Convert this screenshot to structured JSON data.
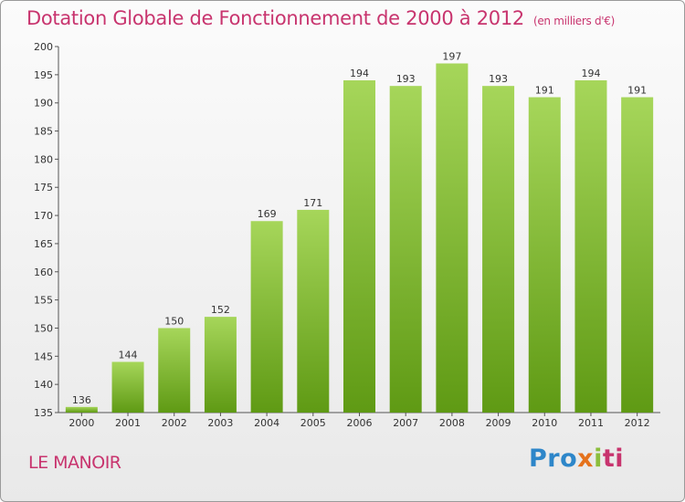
{
  "header": {
    "title": "Dotation Globale de Fonctionnement de 2000 à 2012",
    "units": "(en milliers d'€)"
  },
  "footer": {
    "place": "LE MANOIR",
    "logo_parts": [
      "Pro",
      "x",
      "i",
      "ti"
    ]
  },
  "colors": {
    "title": "#c8346e",
    "bar_top": "#a6d65a",
    "bar_bottom": "#5f9a14"
  },
  "chart_data": {
    "type": "bar",
    "title": "Dotation Globale de Fonctionnement de 2000 à 2012",
    "subtitle": "(en milliers d'€)",
    "xlabel": "",
    "ylabel": "",
    "categories": [
      "2000",
      "2001",
      "2002",
      "2003",
      "2004",
      "2005",
      "2006",
      "2007",
      "2008",
      "2009",
      "2010",
      "2011",
      "2012"
    ],
    "values": [
      136,
      144,
      150,
      152,
      169,
      171,
      194,
      193,
      197,
      193,
      191,
      194,
      191
    ],
    "ylim": [
      135,
      200
    ],
    "yticks": [
      135,
      140,
      145,
      150,
      155,
      160,
      165,
      170,
      175,
      180,
      185,
      190,
      195,
      200
    ],
    "grid": false,
    "legend": "none"
  }
}
